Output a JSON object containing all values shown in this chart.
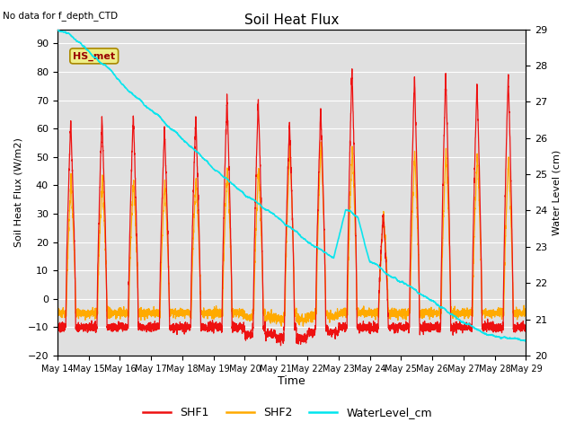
{
  "title": "Soil Heat Flux",
  "top_left_text": "No data for f_depth_CTD",
  "ylabel_left": "Soil Heat Flux (W/m2)",
  "ylabel_right": "Water Level (cm)",
  "xlabel": "Time",
  "ylim_left": [
    -20,
    95
  ],
  "ylim_right": [
    20.0,
    29.0
  ],
  "background_color": "#ffffff",
  "plot_bg_color": "#e0e0e0",
  "grid_color": "#ffffff",
  "shf1_color": "#ee1111",
  "shf2_color": "#ffaa00",
  "water_color": "#00e5ee",
  "yticks_left": [
    -20,
    -10,
    0,
    10,
    20,
    30,
    40,
    50,
    60,
    70,
    80,
    90
  ],
  "yticks_right": [
    20.0,
    21.0,
    22.0,
    23.0,
    24.0,
    25.0,
    26.0,
    27.0,
    28.0,
    29.0
  ],
  "xtick_labels": [
    "May 14",
    "May 15",
    "May 16",
    "May 17",
    "May 18",
    "May 19",
    "May 20",
    "May 21",
    "May 22",
    "May 23",
    "May 24",
    "May 25",
    "May 26",
    "May 27",
    "May 28",
    "May 29"
  ],
  "legend_labels": [
    "SHF1",
    "SHF2",
    "WaterLevel_cm"
  ],
  "hs_met_label": "HS_met",
  "n_days": 15,
  "shf1_day_peaks": [
    63,
    64,
    65,
    60,
    64,
    71,
    70,
    62,
    67,
    81,
    30,
    78,
    79,
    76,
    79,
    75
  ],
  "shf2_day_peaks": [
    42,
    43,
    42,
    41,
    43,
    47,
    46,
    54,
    56,
    54,
    30,
    52,
    53,
    51,
    50,
    49
  ],
  "shf1_night_base": -10,
  "shf2_night_base": -5,
  "water_level_vals": [
    29.0,
    28.75,
    28.5,
    28.15,
    27.85,
    27.45,
    27.1,
    26.8,
    26.5,
    26.15,
    25.85,
    25.55,
    25.25,
    24.9,
    24.6,
    24.3,
    24.05,
    23.8,
    23.55,
    23.3,
    23.1,
    22.9,
    22.7,
    22.5,
    23.8,
    23.6,
    22.4,
    22.2,
    22.0,
    21.8,
    21.6,
    21.4,
    21.2,
    21.0,
    20.85,
    20.75,
    20.65,
    20.55,
    20.45,
    20.4
  ]
}
